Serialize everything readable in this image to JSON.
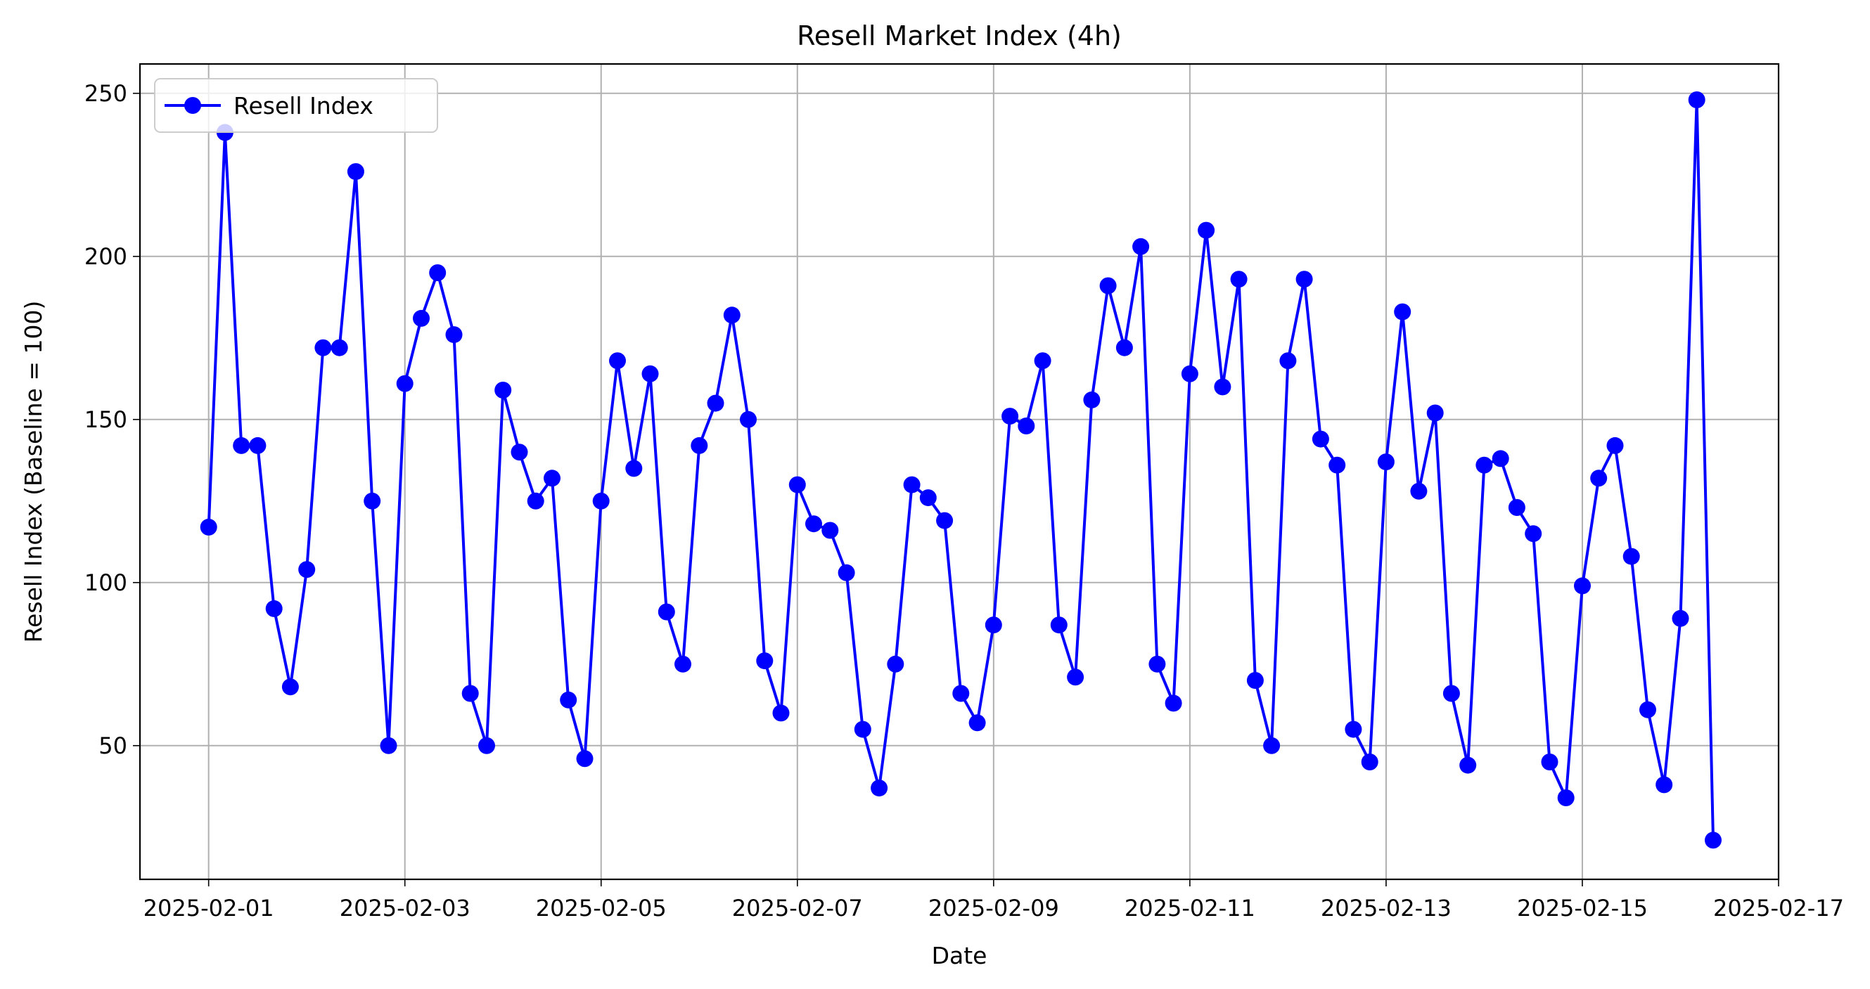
{
  "chart_data": {
    "type": "line",
    "title": "Resell Market Index (4h)",
    "xlabel": "Date",
    "ylabel": "Resell Index (Baseline = 100)",
    "x_tick_labels": [
      "2025-02-01",
      "2025-02-03",
      "2025-02-05",
      "2025-02-07",
      "2025-02-09",
      "2025-02-11",
      "2025-02-13",
      "2025-02-15",
      "2025-02-17"
    ],
    "y_ticks": [
      50,
      100,
      150,
      200,
      250
    ],
    "xlim": [
      "2025-01-31T07:12",
      "2025-02-17T00:00"
    ],
    "ylim": [
      9,
      259
    ],
    "grid": true,
    "legend_position": "top-left",
    "series": [
      {
        "name": "Resell Index",
        "color": "#0000ff",
        "marker": "circle",
        "x": [
          "2025-02-01T00:00",
          "2025-02-01T04:00",
          "2025-02-01T08:00",
          "2025-02-01T12:00",
          "2025-02-01T16:00",
          "2025-02-01T20:00",
          "2025-02-02T00:00",
          "2025-02-02T04:00",
          "2025-02-02T08:00",
          "2025-02-02T12:00",
          "2025-02-02T16:00",
          "2025-02-02T20:00",
          "2025-02-03T00:00",
          "2025-02-03T04:00",
          "2025-02-03T08:00",
          "2025-02-03T12:00",
          "2025-02-03T16:00",
          "2025-02-03T20:00",
          "2025-02-04T00:00",
          "2025-02-04T04:00",
          "2025-02-04T08:00",
          "2025-02-04T12:00",
          "2025-02-04T16:00",
          "2025-02-04T20:00",
          "2025-02-05T00:00",
          "2025-02-05T04:00",
          "2025-02-05T08:00",
          "2025-02-05T12:00",
          "2025-02-05T16:00",
          "2025-02-05T20:00",
          "2025-02-06T00:00",
          "2025-02-06T04:00",
          "2025-02-06T08:00",
          "2025-02-06T12:00",
          "2025-02-06T16:00",
          "2025-02-06T20:00",
          "2025-02-07T00:00",
          "2025-02-07T04:00",
          "2025-02-07T08:00",
          "2025-02-07T12:00",
          "2025-02-07T16:00",
          "2025-02-07T20:00",
          "2025-02-08T00:00",
          "2025-02-08T04:00",
          "2025-02-08T08:00",
          "2025-02-08T12:00",
          "2025-02-08T16:00",
          "2025-02-08T20:00",
          "2025-02-09T00:00",
          "2025-02-09T04:00",
          "2025-02-09T08:00",
          "2025-02-09T12:00",
          "2025-02-09T16:00",
          "2025-02-09T20:00",
          "2025-02-10T00:00",
          "2025-02-10T04:00",
          "2025-02-10T08:00",
          "2025-02-10T12:00",
          "2025-02-10T16:00",
          "2025-02-10T20:00",
          "2025-02-11T00:00",
          "2025-02-11T04:00",
          "2025-02-11T08:00",
          "2025-02-11T12:00",
          "2025-02-11T16:00",
          "2025-02-11T20:00",
          "2025-02-12T00:00",
          "2025-02-12T04:00",
          "2025-02-12T08:00",
          "2025-02-12T12:00",
          "2025-02-12T16:00",
          "2025-02-12T20:00",
          "2025-02-13T00:00",
          "2025-02-13T04:00",
          "2025-02-13T08:00",
          "2025-02-13T12:00",
          "2025-02-13T16:00",
          "2025-02-13T20:00",
          "2025-02-14T00:00",
          "2025-02-14T04:00",
          "2025-02-14T08:00",
          "2025-02-14T12:00",
          "2025-02-14T16:00",
          "2025-02-14T20:00",
          "2025-02-15T00:00",
          "2025-02-15T04:00",
          "2025-02-15T08:00",
          "2025-02-15T12:00",
          "2025-02-15T16:00",
          "2025-02-15T20:00",
          "2025-02-16T00:00",
          "2025-02-16T04:00",
          "2025-02-16T08:00"
        ],
        "values": [
          117,
          238,
          142,
          142,
          92,
          68,
          104,
          172,
          172,
          226,
          125,
          50,
          161,
          181,
          195,
          176,
          66,
          50,
          159,
          140,
          125,
          132,
          64,
          46,
          125,
          168,
          135,
          164,
          91,
          75,
          142,
          155,
          182,
          150,
          76,
          60,
          130,
          118,
          116,
          103,
          55,
          37,
          75,
          130,
          126,
          119,
          66,
          57,
          87,
          151,
          148,
          168,
          87,
          71,
          156,
          191,
          172,
          203,
          75,
          63,
          164,
          208,
          160,
          193,
          70,
          50,
          168,
          193,
          144,
          136,
          55,
          45,
          137,
          183,
          128,
          152,
          66,
          44,
          136,
          138,
          123,
          115,
          45,
          34,
          99,
          132,
          142,
          108,
          61,
          38,
          89,
          248,
          21
        ]
      }
    ]
  }
}
